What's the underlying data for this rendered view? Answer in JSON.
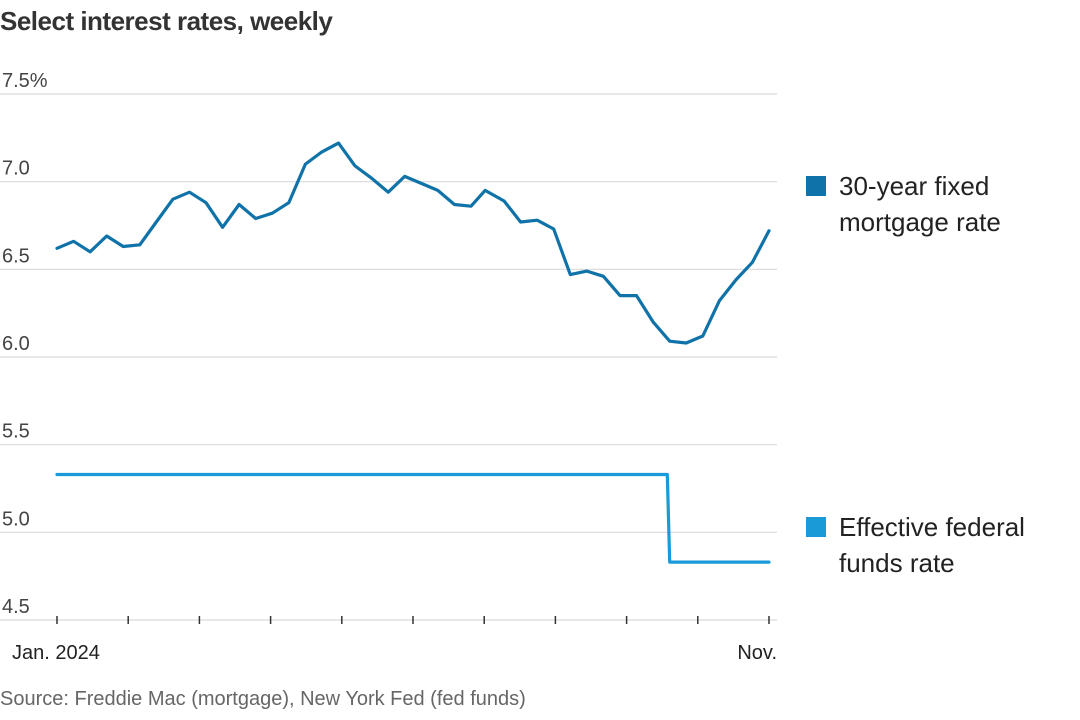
{
  "chart_data": {
    "type": "line",
    "title": "Select interest rates, weekly",
    "source": "Source: Freddie Mac (mortgage), New York Fed (fed funds)",
    "x_labels": {
      "start": "Jan. 2024",
      "end": "Nov."
    },
    "ylim": [
      4.5,
      7.5
    ],
    "y_ticks": [
      "7.5%",
      "7.0",
      "6.5",
      "6.0",
      "5.5",
      "5.0",
      "4.5"
    ],
    "y_tick_values": [
      7.5,
      7.0,
      6.5,
      6.0,
      5.5,
      5.0,
      4.5
    ],
    "grid": true,
    "legend_placement": "right",
    "series": [
      {
        "name": "30-year fixed mortgage rate",
        "name_lines": [
          "30-year fixed",
          "mortgage rate"
        ],
        "color": "#0f72a8",
        "x": [
          "2024-01-04",
          "2024-01-11",
          "2024-01-18",
          "2024-01-25",
          "2024-02-01",
          "2024-02-08",
          "2024-02-15",
          "2024-02-22",
          "2024-02-29",
          "2024-03-07",
          "2024-03-14",
          "2024-03-21",
          "2024-03-28",
          "2024-04-04",
          "2024-04-11",
          "2024-04-18",
          "2024-04-25",
          "2024-05-02",
          "2024-05-09",
          "2024-05-16",
          "2024-05-23",
          "2024-05-30",
          "2024-06-06",
          "2024-06-13",
          "2024-06-20",
          "2024-06-27",
          "2024-07-03",
          "2024-07-11",
          "2024-07-18",
          "2024-07-25",
          "2024-08-01",
          "2024-08-08",
          "2024-08-15",
          "2024-08-22",
          "2024-08-29",
          "2024-09-05",
          "2024-09-12",
          "2024-09-19",
          "2024-09-26",
          "2024-10-03",
          "2024-10-10",
          "2024-10-17",
          "2024-10-24",
          "2024-10-31"
        ],
        "values": [
          6.62,
          6.66,
          6.6,
          6.69,
          6.63,
          6.64,
          6.77,
          6.9,
          6.94,
          6.88,
          6.74,
          6.87,
          6.79,
          6.82,
          6.88,
          7.1,
          7.17,
          7.22,
          7.09,
          7.02,
          6.94,
          7.03,
          6.99,
          6.95,
          6.87,
          6.86,
          6.95,
          6.89,
          6.77,
          6.78,
          6.73,
          6.47,
          6.49,
          6.46,
          6.35,
          6.35,
          6.2,
          6.09,
          6.08,
          6.12,
          6.32,
          6.44,
          6.54,
          6.72
        ]
      },
      {
        "name": "Effective federal funds rate",
        "name_lines": [
          "Effective federal",
          "funds rate"
        ],
        "color": "#1a9ad6",
        "x": [
          "2024-01-04",
          "2024-09-18",
          "2024-09-19",
          "2024-10-31"
        ],
        "values": [
          5.33,
          5.33,
          4.83,
          4.83
        ]
      }
    ]
  }
}
